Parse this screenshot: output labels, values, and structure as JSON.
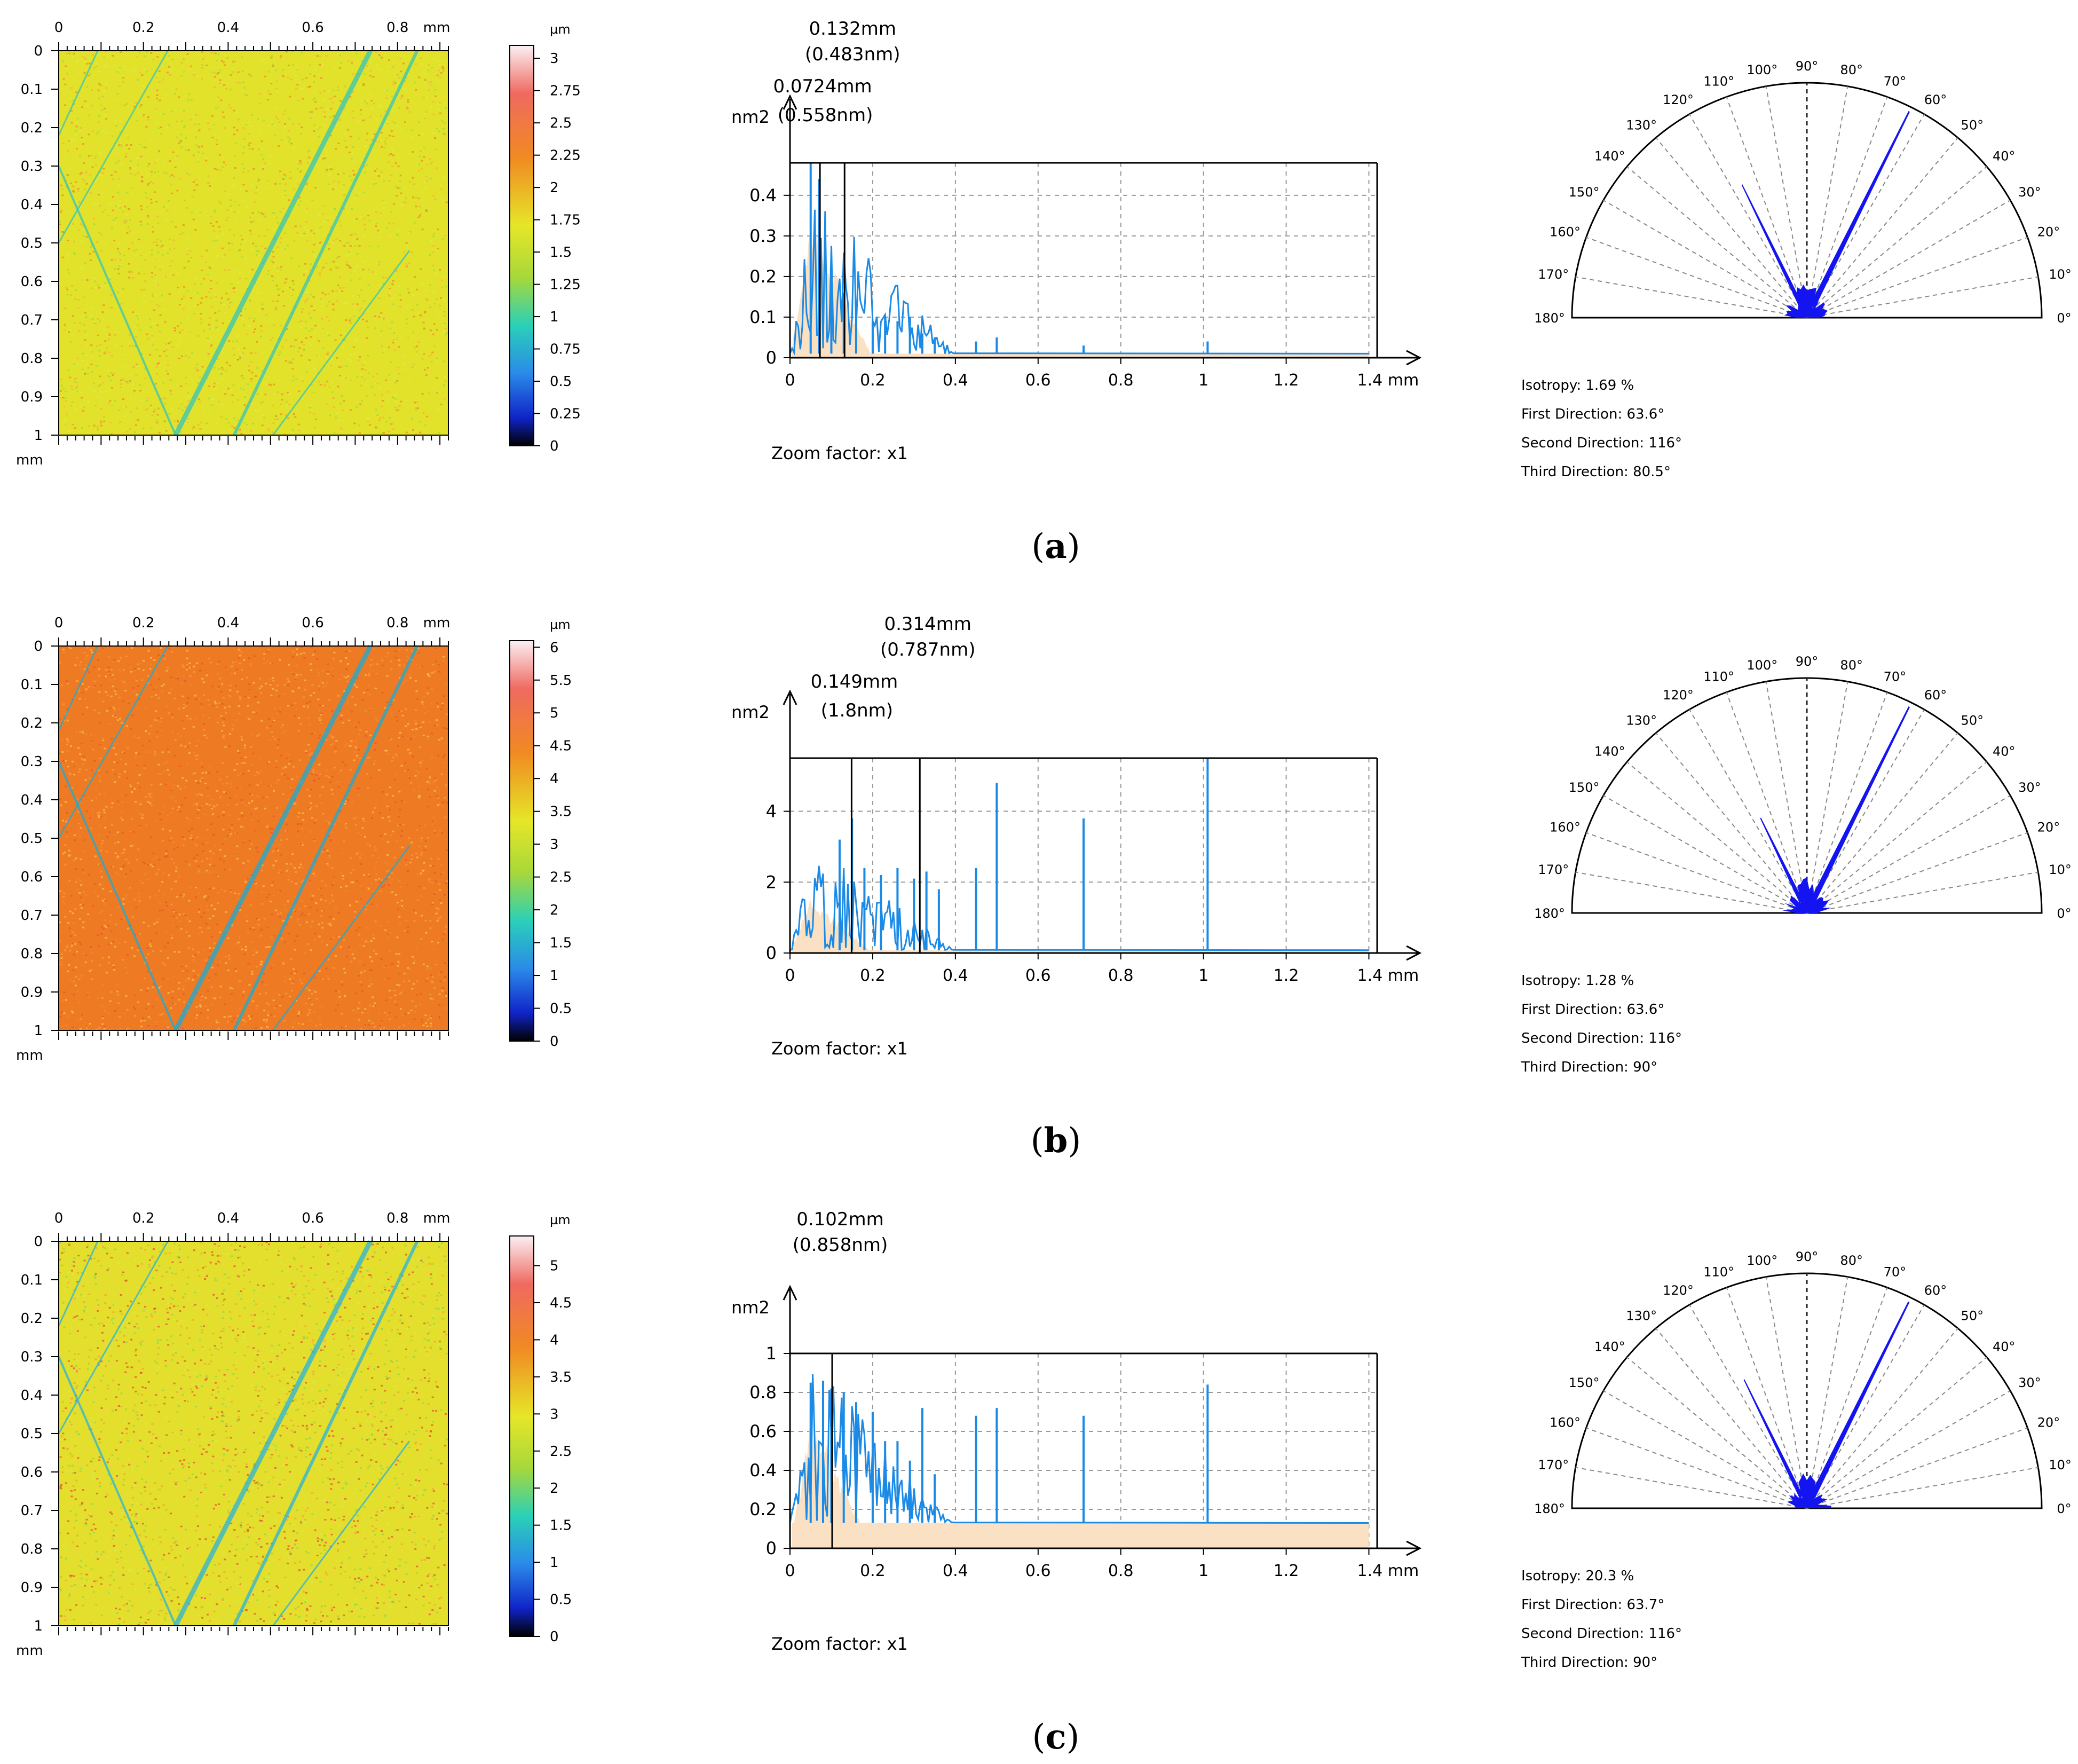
{
  "panels": [
    {
      "letter": "a",
      "caption_open": "(",
      "caption_close": ")",
      "map": {
        "x_ticks": [
          "0",
          "0.2",
          "0.4",
          "0.6",
          "0.8"
        ],
        "x_unit": "mm",
        "y_ticks": [
          "0",
          "0.1",
          "0.2",
          "0.3",
          "0.4",
          "0.5",
          "0.6",
          "0.7",
          "0.8",
          "0.9",
          "1"
        ],
        "y_unit": "mm",
        "base_color": "#e3e22a",
        "noise_colors": [
          "#f2b43a",
          "#9fdc3a",
          "#f08a2a",
          "#d8ee4a"
        ],
        "stripe_color": "#3fc8b0",
        "colorbar": {
          "unit": "µm",
          "ticks": [
            "3",
            "2.75",
            "2.5",
            "2.25",
            "2",
            "1.75",
            "1.5",
            "1.25",
            "1",
            "0.75",
            "0.5",
            "0.25",
            "0"
          ],
          "max": 3.1,
          "min": 0
        }
      },
      "spectrum": {
        "y_unit": "nm2",
        "y_ticks": [
          "0.4",
          "0.3",
          "0.2",
          "0.1",
          "0"
        ],
        "y_tick_values": [
          0.4,
          0.3,
          0.2,
          0.1,
          0
        ],
        "y_max": 0.48,
        "x_ticks": [
          "0",
          "0.2",
          "0.4",
          "0.6",
          "0.8",
          "1",
          "1.2",
          "1.4 mm"
        ],
        "x_tick_values": [
          0,
          0.2,
          0.4,
          0.6,
          0.8,
          1,
          1.2,
          1.4
        ],
        "x_max": 1.42,
        "zoom_label": "Zoom factor: x1",
        "baseline": 0.01,
        "peaks_label_a": {
          "mm": "0.132mm",
          "nm": "(0.483nm)",
          "x": 0.132
        },
        "peaks_label_b": {
          "mm": "0.0724mm",
          "nm": "(0.558nm)",
          "x": 0.0724
        },
        "spikes": [
          [
            0.05,
            0.48
          ],
          [
            0.07,
            0.44
          ],
          [
            0.1,
            0.22
          ],
          [
            0.13,
            0.16
          ],
          [
            0.16,
            0.1
          ],
          [
            0.2,
            0.09
          ],
          [
            0.23,
            0.1
          ],
          [
            0.26,
            0.09
          ],
          [
            0.29,
            0.1
          ],
          [
            0.32,
            0.06
          ],
          [
            0.35,
            0.05
          ],
          [
            0.45,
            0.04
          ],
          [
            0.5,
            0.05
          ],
          [
            0.71,
            0.03
          ],
          [
            1.01,
            0.04
          ]
        ]
      },
      "rose": {
        "angle_labels": [
          "0°",
          "10°",
          "20°",
          "30°",
          "40°",
          "50°",
          "60°",
          "70°",
          "80°",
          "90°",
          "100°",
          "110°",
          "120°",
          "130°",
          "140°",
          "150°",
          "160°",
          "170°",
          "180°"
        ],
        "main_lobe_angle": 63.6,
        "secondary_lobe_angle": 116,
        "secondary_lobe_strength": 0.38,
        "isotropy": "Isotropy: 1.69 %",
        "first_direction": "First Direction: 63.6°",
        "second_direction": "Second Direction: 116°",
        "third_direction": "Third Direction: 80.5°"
      }
    },
    {
      "letter": "b",
      "caption_open": "(",
      "caption_close": ")",
      "map": {
        "x_ticks": [
          "0",
          "0.2",
          "0.4",
          "0.6",
          "0.8"
        ],
        "x_unit": "mm",
        "y_ticks": [
          "0",
          "0.1",
          "0.2",
          "0.3",
          "0.4",
          "0.5",
          "0.6",
          "0.7",
          "0.8",
          "0.9",
          "1"
        ],
        "y_unit": "mm",
        "base_color": "#ef7a24",
        "noise_colors": [
          "#f4a13a",
          "#e4582a",
          "#f6c64a",
          "#f08c2e"
        ],
        "stripe_color": "#2aa8c8",
        "colorbar": {
          "unit": "µm",
          "ticks": [
            "6",
            "5.5",
            "5",
            "4.5",
            "4",
            "3.5",
            "3",
            "2.5",
            "2",
            "1.5",
            "1",
            "0.5",
            "0"
          ],
          "max": 6.1,
          "min": 0
        }
      },
      "spectrum": {
        "y_unit": "nm2",
        "y_ticks": [
          "4",
          "2",
          "0"
        ],
        "y_tick_values": [
          4,
          2,
          0
        ],
        "y_max": 5.5,
        "x_ticks": [
          "0",
          "0.2",
          "0.4",
          "0.6",
          "0.8",
          "1",
          "1.2",
          "1.4 mm"
        ],
        "x_tick_values": [
          0,
          0.2,
          0.4,
          0.6,
          0.8,
          1,
          1.2,
          1.4
        ],
        "x_max": 1.42,
        "zoom_label": "Zoom factor: x1",
        "baseline": 0.08,
        "peaks_label_a": {
          "mm": "0.314mm",
          "nm": "(0.787nm)",
          "x": 0.314
        },
        "peaks_label_b": {
          "mm": "0.149mm",
          "nm": "(1.8nm)",
          "x": 0.149
        },
        "spikes": [
          [
            0.12,
            3.2
          ],
          [
            0.15,
            3.8
          ],
          [
            0.18,
            2.4
          ],
          [
            0.22,
            2.2
          ],
          [
            0.26,
            2.4
          ],
          [
            0.3,
            2.1
          ],
          [
            0.33,
            2.3
          ],
          [
            0.36,
            1.8
          ],
          [
            0.45,
            2.4
          ],
          [
            0.5,
            4.8
          ],
          [
            0.71,
            3.8
          ],
          [
            1.01,
            5.5
          ]
        ]
      },
      "rose": {
        "angle_labels": [
          "0°",
          "10°",
          "20°",
          "30°",
          "40°",
          "50°",
          "60°",
          "70°",
          "80°",
          "90°",
          "100°",
          "110°",
          "120°",
          "130°",
          "140°",
          "150°",
          "160°",
          "170°",
          "180°"
        ],
        "main_lobe_angle": 63.6,
        "secondary_lobe_angle": 116,
        "secondary_lobe_strength": 0.2,
        "isotropy": "Isotropy: 1.28 %",
        "first_direction": "First Direction: 63.6°",
        "second_direction": "Second Direction: 116°",
        "third_direction": "Third Direction: 90°"
      }
    },
    {
      "letter": "c",
      "caption_open": "(",
      "caption_close": ")",
      "map": {
        "x_ticks": [
          "0",
          "0.2",
          "0.4",
          "0.6",
          "0.8"
        ],
        "x_unit": "mm",
        "y_ticks": [
          "0",
          "0.1",
          "0.2",
          "0.3",
          "0.4",
          "0.5",
          "0.6",
          "0.7",
          "0.8",
          "0.9",
          "1"
        ],
        "y_unit": "mm",
        "base_color": "#e3df2c",
        "noise_colors": [
          "#f0a636",
          "#8ed84a",
          "#e9503a",
          "#d2ec4c"
        ],
        "stripe_color": "#36b6d0",
        "colorbar": {
          "unit": "µm",
          "ticks": [
            "5",
            "4.5",
            "4",
            "3.5",
            "3",
            "2.5",
            "2",
            "1.5",
            "1",
            "0.5",
            "0"
          ],
          "max": 5.4,
          "min": 0
        }
      },
      "spectrum": {
        "y_unit": "nm2",
        "y_ticks": [
          "1",
          "0.8",
          "0.6",
          "0.4",
          "0.2",
          "0"
        ],
        "y_tick_values": [
          1,
          0.8,
          0.6,
          0.4,
          0.2,
          0
        ],
        "y_max": 1.0,
        "x_ticks": [
          "0",
          "0.2",
          "0.4",
          "0.6",
          "0.8",
          "1",
          "1.2",
          "1.4 mm"
        ],
        "x_tick_values": [
          0,
          0.2,
          0.4,
          0.6,
          0.8,
          1,
          1.2,
          1.4
        ],
        "x_max": 1.42,
        "zoom_label": "Zoom factor: x1",
        "baseline": 0.13,
        "peaks_label_a": {
          "mm": "0.102mm",
          "nm": "(0.858nm)",
          "x": 0.102
        },
        "peaks_label_b": null,
        "spikes": [
          [
            0.05,
            0.85
          ],
          [
            0.08,
            0.86
          ],
          [
            0.1,
            0.82
          ],
          [
            0.13,
            0.8
          ],
          [
            0.16,
            0.75
          ],
          [
            0.2,
            0.7
          ],
          [
            0.23,
            0.55
          ],
          [
            0.26,
            0.55
          ],
          [
            0.29,
            0.45
          ],
          [
            0.32,
            0.72
          ],
          [
            0.35,
            0.38
          ],
          [
            0.45,
            0.68
          ],
          [
            0.5,
            0.72
          ],
          [
            0.71,
            0.68
          ],
          [
            1.01,
            0.84
          ]
        ]
      },
      "rose": {
        "angle_labels": [
          "0°",
          "10°",
          "20°",
          "30°",
          "40°",
          "50°",
          "60°",
          "70°",
          "80°",
          "90°",
          "100°",
          "110°",
          "120°",
          "130°",
          "140°",
          "150°",
          "160°",
          "170°",
          "180°"
        ],
        "main_lobe_angle": 63.7,
        "secondary_lobe_angle": 116,
        "secondary_lobe_strength": 0.36,
        "isotropy": "Isotropy: 20.3 %",
        "first_direction": "First Direction: 63.7°",
        "second_direction": "Second Direction: 116°",
        "third_direction": "Third Direction: 90°"
      }
    }
  ]
}
